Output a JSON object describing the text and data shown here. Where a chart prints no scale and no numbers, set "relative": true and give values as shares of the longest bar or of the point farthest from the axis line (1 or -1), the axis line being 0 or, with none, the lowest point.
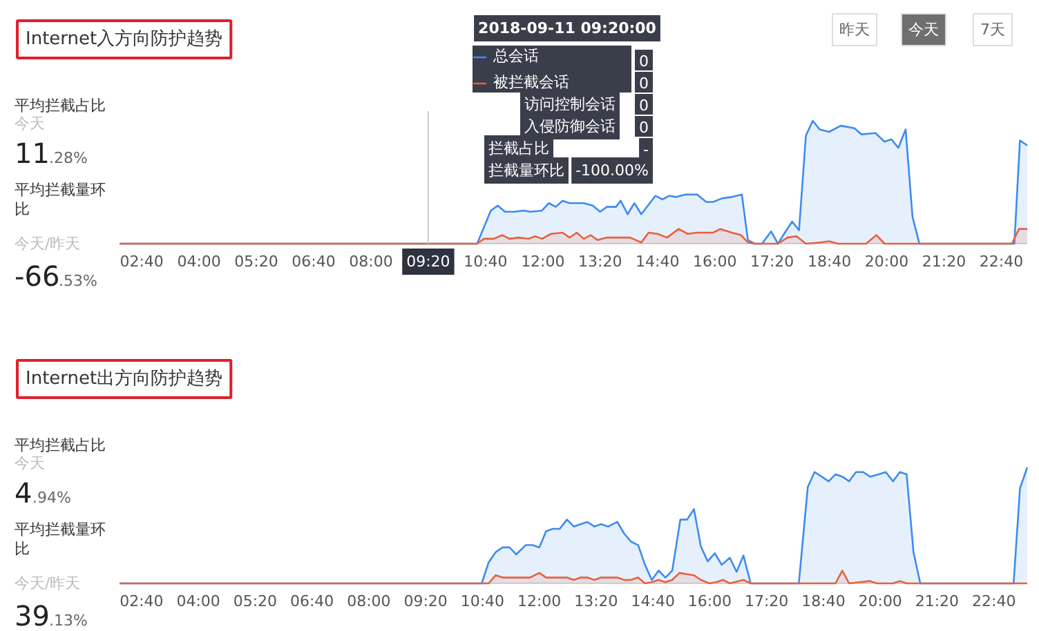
{
  "chart_data": [
    {
      "type": "area",
      "title": "Internet入方向防护趋势",
      "relative": true,
      "legend": "top",
      "xlim": [
        2.15,
        23.27
      ],
      "xticks": [
        {
          "value": 2.667,
          "label": "02:40"
        },
        {
          "value": 4,
          "label": "04:00"
        },
        {
          "value": 5.333,
          "label": "05:20"
        },
        {
          "value": 6.667,
          "label": "06:40"
        },
        {
          "value": 8,
          "label": "08:00"
        },
        {
          "value": 9.333,
          "label": null
        },
        {
          "value": 10.667,
          "label": "10:40"
        },
        {
          "value": 12,
          "label": "12:00"
        },
        {
          "value": 13.333,
          "label": "13:20"
        },
        {
          "value": 14.667,
          "label": "14:40"
        },
        {
          "value": 16,
          "label": "16:00"
        },
        {
          "value": 17.333,
          "label": "17:20"
        },
        {
          "value": 18.667,
          "label": "18:40"
        },
        {
          "value": 20,
          "label": "20:00"
        },
        {
          "value": 21.333,
          "label": "21:20"
        },
        {
          "value": 22.667,
          "label": "22:40"
        }
      ],
      "ref_lines": [
        {
          "axis": "x",
          "value": 9.333,
          "label": "09:20"
        }
      ],
      "annotations": [
        "平均拦截占比",
        "今天",
        "11.28%",
        "平均拦截量环比",
        "今天/昨天",
        "-66.53%",
        "2018-09-11 09:20:00",
        "0",
        "0",
        "访问控制会话",
        "0",
        "入侵防御会话",
        "0",
        "拦截占比",
        "-",
        "拦截量环比",
        "-100.00%",
        "昨天",
        "今天",
        "7天"
      ],
      "series": [
        {
          "name": "总会话",
          "color": "#3d8bf0",
          "x": [
            2.15,
            10.47,
            10.79,
            10.95,
            11.12,
            11.33,
            11.55,
            11.71,
            11.98,
            12.14,
            12.3,
            12.46,
            12.62,
            12.95,
            13.16,
            13.33,
            13.49,
            13.7,
            13.81,
            13.97,
            14.13,
            14.29,
            14.62,
            14.78,
            14.94,
            15.1,
            15.32,
            15.59,
            15.8,
            15.96,
            16.18,
            16.4,
            16.63,
            16.77,
            16.93,
            17.1,
            17.31,
            17.47,
            17.63,
            17.8,
            17.96,
            18.12,
            18.28,
            18.44,
            18.66,
            18.93,
            19.09,
            19.25,
            19.41,
            19.74,
            19.95,
            20.11,
            20.27,
            20.44,
            20.6,
            20.76,
            22.97,
            23.1,
            23.27
          ],
          "values": [
            0,
            0,
            0.27,
            0.31,
            0.26,
            0.26,
            0.27,
            0.26,
            0.27,
            0.33,
            0.3,
            0.35,
            0.33,
            0.33,
            0.31,
            0.26,
            0.3,
            0.3,
            0.35,
            0.24,
            0.33,
            0.24,
            0.39,
            0.36,
            0.39,
            0.38,
            0.4,
            0.4,
            0.34,
            0.34,
            0.37,
            0.38,
            0.4,
            0.03,
            0,
            0,
            0.1,
            0,
            0.09,
            0.18,
            0.11,
            0.88,
            1.0,
            0.93,
            0.91,
            0.96,
            0.95,
            0.94,
            0.89,
            0.9,
            0.83,
            0.85,
            0.78,
            0.93,
            0.22,
            0,
            0,
            0.84,
            0.8
          ]
        },
        {
          "name": "被拦截会话",
          "color": "#e8603c",
          "x": [
            2.15,
            10.47,
            10.63,
            10.85,
            11.06,
            11.22,
            11.44,
            11.66,
            11.82,
            11.98,
            12.19,
            12.46,
            12.62,
            12.79,
            12.95,
            13.11,
            13.27,
            13.49,
            13.81,
            14.03,
            14.29,
            14.46,
            14.67,
            14.89,
            15.16,
            15.37,
            15.59,
            15.96,
            16.13,
            16.4,
            16.61,
            16.77,
            16.93,
            17.47,
            17.69,
            17.9,
            18.12,
            18.44,
            18.66,
            18.87,
            19.52,
            19.76,
            19.95,
            22.91,
            23.08,
            23.27
          ],
          "values": [
            0,
            0,
            0.04,
            0.04,
            0.07,
            0.04,
            0.05,
            0.04,
            0.06,
            0.04,
            0.08,
            0.09,
            0.05,
            0.09,
            0.04,
            0.07,
            0.03,
            0.05,
            0.05,
            0.05,
            0.01,
            0.09,
            0.08,
            0.05,
            0.12,
            0.08,
            0.09,
            0.09,
            0.12,
            0.09,
            0.07,
            0.01,
            0,
            0,
            0.05,
            0.06,
            0,
            0.01,
            0.02,
            0,
            0,
            0.07,
            0,
            0,
            0.12,
            0.12
          ]
        }
      ]
    },
    {
      "type": "area",
      "title": "Internet出方向防护趋势",
      "relative": true,
      "xlim": [
        2.15,
        23.45
      ],
      "xticks": [
        {
          "value": 2.667,
          "label": "02:40"
        },
        {
          "value": 4,
          "label": "04:00"
        },
        {
          "value": 5.333,
          "label": "05:20"
        },
        {
          "value": 6.667,
          "label": "06:40"
        },
        {
          "value": 8,
          "label": "08:00"
        },
        {
          "value": 9.333,
          "label": "09:20"
        },
        {
          "value": 10.667,
          "label": "10:40"
        },
        {
          "value": 12,
          "label": "12:00"
        },
        {
          "value": 13.333,
          "label": "13:20"
        },
        {
          "value": 14.667,
          "label": "14:40"
        },
        {
          "value": 16,
          "label": "16:00"
        },
        {
          "value": 17.333,
          "label": "17:20"
        },
        {
          "value": 18.667,
          "label": "18:40"
        },
        {
          "value": 20,
          "label": "20:00"
        },
        {
          "value": 21.333,
          "label": "21:20"
        },
        {
          "value": 22.667,
          "label": "22:40"
        }
      ],
      "annotations": [
        "平均拦截占比",
        "今天",
        "4.94%",
        "平均拦截量环比",
        "今天/昨天",
        "39.13%"
      ],
      "series": [
        {
          "color": "#3d8bf0",
          "x": [
            2.15,
            10.65,
            10.81,
            10.98,
            11.14,
            11.3,
            11.46,
            11.68,
            11.84,
            12.0,
            12.16,
            12.32,
            12.48,
            12.65,
            12.81,
            12.97,
            13.13,
            13.29,
            13.45,
            13.62,
            13.83,
            13.99,
            14.15,
            14.32,
            14.48,
            14.64,
            14.8,
            14.96,
            15.12,
            15.31,
            15.47,
            15.63,
            15.79,
            15.95,
            16.12,
            16.28,
            16.47,
            16.63,
            16.79,
            16.96,
            18.09,
            18.3,
            18.46,
            18.79,
            18.95,
            19.11,
            19.27,
            19.43,
            19.6,
            19.76,
            19.97,
            20.13,
            20.3,
            20.46,
            20.62,
            20.78,
            20.94,
            23.13,
            23.28,
            23.45
          ],
          "values": [
            0,
            0,
            0.18,
            0.27,
            0.31,
            0.31,
            0.25,
            0.33,
            0.33,
            0.31,
            0.45,
            0.47,
            0.47,
            0.55,
            0.49,
            0.51,
            0.53,
            0.49,
            0.51,
            0.49,
            0.53,
            0.43,
            0.36,
            0.33,
            0.16,
            0.03,
            0.11,
            0.05,
            0.11,
            0.55,
            0.55,
            0.64,
            0.32,
            0.19,
            0.26,
            0.16,
            0.22,
            0.1,
            0.24,
            0,
            0,
            0.83,
            0.96,
            0.88,
            0.94,
            0.92,
            0.88,
            0.96,
            0.96,
            0.92,
            0.94,
            0.96,
            0.88,
            0.96,
            0.94,
            0.27,
            0,
            0,
            0.82,
            1.0
          ]
        },
        {
          "color": "#e8603c",
          "x": [
            2.15,
            10.81,
            10.98,
            11.14,
            11.78,
            12.0,
            12.16,
            12.65,
            12.81,
            12.97,
            13.13,
            13.29,
            13.45,
            13.83,
            13.99,
            14.15,
            14.32,
            14.48,
            14.64,
            14.8,
            14.96,
            15.12,
            15.29,
            15.45,
            15.63,
            15.79,
            15.99,
            16.15,
            16.31,
            16.47,
            16.79,
            16.96,
            18.95,
            19.11,
            19.27,
            19.76,
            19.92,
            20.3,
            20.46,
            20.62,
            23.45
          ],
          "values": [
            0,
            0,
            0.07,
            0.05,
            0.05,
            0.09,
            0.05,
            0.05,
            0.03,
            0.05,
            0.05,
            0.03,
            0.05,
            0.05,
            0.03,
            0.03,
            0.05,
            0,
            0.01,
            0.03,
            0.01,
            0.03,
            0.09,
            0.08,
            0.07,
            0.03,
            0,
            0.01,
            0.03,
            0,
            0.03,
            0,
            0,
            0.11,
            0,
            0.02,
            0,
            0,
            0.02,
            0,
            0
          ]
        }
      ]
    }
  ]
}
